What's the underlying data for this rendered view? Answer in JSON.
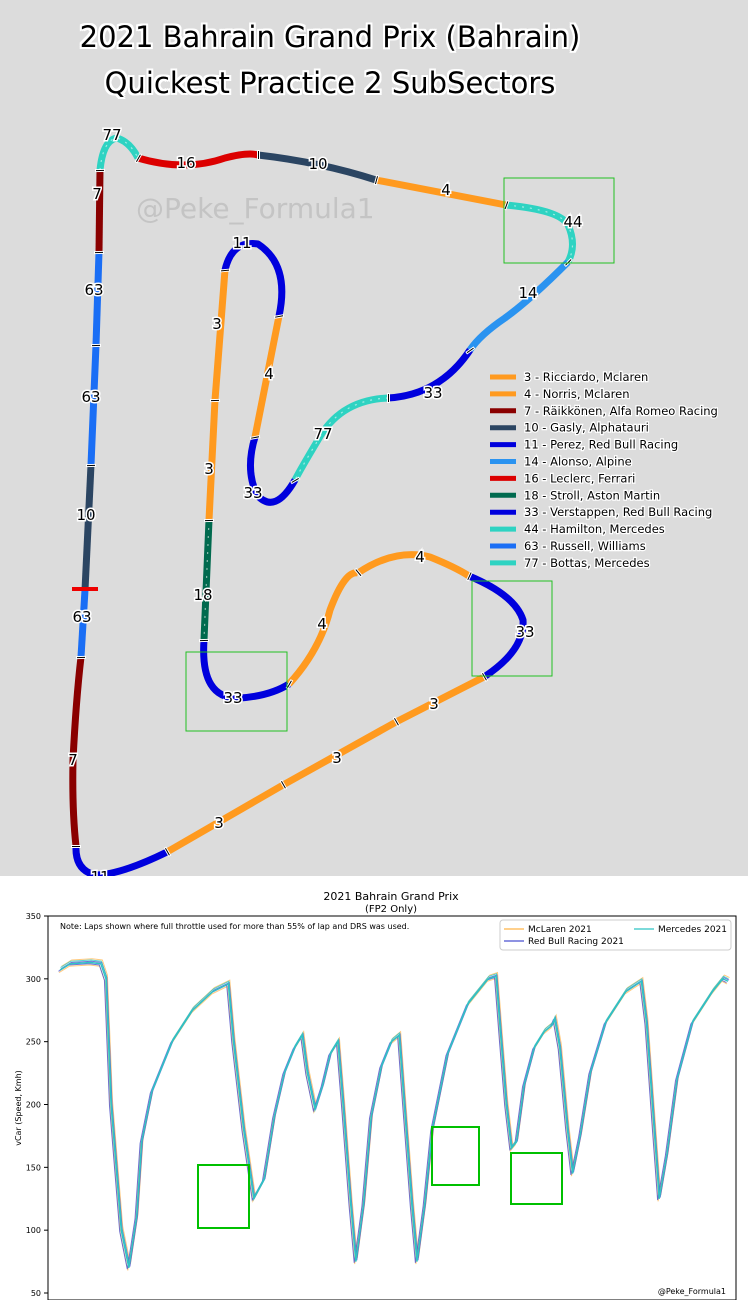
{
  "chart_data": [
    {
      "type": "track-map",
      "title": "2021 Bahrain Grand Prix (Bahrain)",
      "subtitle": "Quickest Practice 2 SubSectors",
      "watermark": "@Peke_Formula1",
      "legend": [
        {
          "label": "3 - Ricciardo, Mclaren",
          "color": "#ff9a1f"
        },
        {
          "label": "4 - Norris, Mclaren",
          "color": "#ff9a1f"
        },
        {
          "label": "7 - Räikkönen, Alfa Romeo Racing",
          "color": "#8a0000"
        },
        {
          "label": "10 - Gasly, Alphatauri",
          "color": "#2b4562"
        },
        {
          "label": "11 - Perez, Red Bull Racing",
          "color": "#0000dd"
        },
        {
          "label": "14 - Alonso, Alpine",
          "color": "#2a93f0"
        },
        {
          "label": "16 - Leclerc, Ferrari",
          "color": "#dc0000"
        },
        {
          "label": "18 - Stroll, Aston Martin",
          "color": "#006a4e"
        },
        {
          "label": "33 - Verstappen, Red Bull Racing",
          "color": "#0000dd"
        },
        {
          "label": "44 - Hamilton, Mercedes",
          "color": "#2ed3c2"
        },
        {
          "label": "63 - Russell, Williams",
          "color": "#1a6ef5"
        },
        {
          "label": "77 - Bottas, Mercedes",
          "color": "#2ed3c2"
        }
      ],
      "segment_labels": [
        "77",
        "16",
        "10",
        "4",
        "44",
        "14",
        "33",
        "77",
        "33",
        "4",
        "11",
        "3",
        "3",
        "18",
        "33",
        "4",
        "4",
        "33",
        "3",
        "3",
        "3",
        "11",
        "7",
        "63",
        "10",
        "63",
        "63",
        "7"
      ],
      "legend_placement": "right-middle"
    },
    {
      "type": "line",
      "title": "2021 Bahrain Grand Prix",
      "subtitle": "(FP2 Only)",
      "note": "Note: Laps shown where full throttle used for more than 55% of lap and DRS was used.",
      "ylabel": "vCar (Speed, Kmh)",
      "ylim": [
        50,
        350
      ],
      "yticks": [
        "350",
        "300",
        "250",
        "200",
        "150",
        "100",
        "50"
      ],
      "grid": false,
      "legend_placement": "top-right",
      "watermark": "@Peke_Formula1",
      "series": [
        {
          "name": "McLaren 2021",
          "color": "#ffb347"
        },
        {
          "name": "Red Bull Racing 2021",
          "color": "#4a50d0"
        },
        {
          "name": "Mercedes 2021",
          "color": "#2ec4c4"
        }
      ],
      "trace": [
        [
          0,
          307
        ],
        [
          2,
          312
        ],
        [
          6,
          313
        ],
        [
          8,
          312
        ],
        [
          9,
          300
        ],
        [
          10,
          200
        ],
        [
          12,
          100
        ],
        [
          13.5,
          70
        ],
        [
          15,
          110
        ],
        [
          16,
          170
        ],
        [
          18,
          210
        ],
        [
          22,
          250
        ],
        [
          26,
          275
        ],
        [
          30,
          290
        ],
        [
          33,
          296
        ],
        [
          34,
          250
        ],
        [
          36,
          180
        ],
        [
          38,
          125
        ],
        [
          40,
          140
        ],
        [
          42,
          190
        ],
        [
          44,
          225
        ],
        [
          46,
          245
        ],
        [
          47.5,
          255
        ],
        [
          48.5,
          225
        ],
        [
          50,
          196
        ],
        [
          51.5,
          215
        ],
        [
          53,
          240
        ],
        [
          54.5,
          250
        ],
        [
          55.5,
          200
        ],
        [
          57,
          120
        ],
        [
          58,
          75
        ],
        [
          59.5,
          120
        ],
        [
          61,
          190
        ],
        [
          63,
          230
        ],
        [
          65,
          250
        ],
        [
          66.5,
          255
        ],
        [
          67.5,
          200
        ],
        [
          69,
          120
        ],
        [
          70,
          75
        ],
        [
          71.5,
          120
        ],
        [
          73,
          180
        ],
        [
          76,
          240
        ],
        [
          80,
          280
        ],
        [
          84,
          300
        ],
        [
          85.5,
          302
        ],
        [
          86.5,
          250
        ],
        [
          87.5,
          200
        ],
        [
          88.5,
          165
        ],
        [
          89.5,
          170
        ],
        [
          91,
          215
        ],
        [
          93,
          245
        ],
        [
          95,
          258
        ],
        [
          96.5,
          263
        ],
        [
          97,
          268
        ],
        [
          98,
          245
        ],
        [
          99.5,
          180
        ],
        [
          100.5,
          145
        ],
        [
          102,
          175
        ],
        [
          104,
          225
        ],
        [
          107,
          265
        ],
        [
          111,
          290
        ],
        [
          114,
          298
        ],
        [
          115,
          265
        ],
        [
          116.5,
          180
        ],
        [
          117.5,
          125
        ],
        [
          119,
          160
        ],
        [
          121,
          220
        ],
        [
          124,
          265
        ],
        [
          128,
          290
        ],
        [
          130,
          300
        ],
        [
          131,
          298
        ]
      ],
      "trace_x_range": [
        0,
        131
      ],
      "highlight_boxes": 3
    }
  ]
}
